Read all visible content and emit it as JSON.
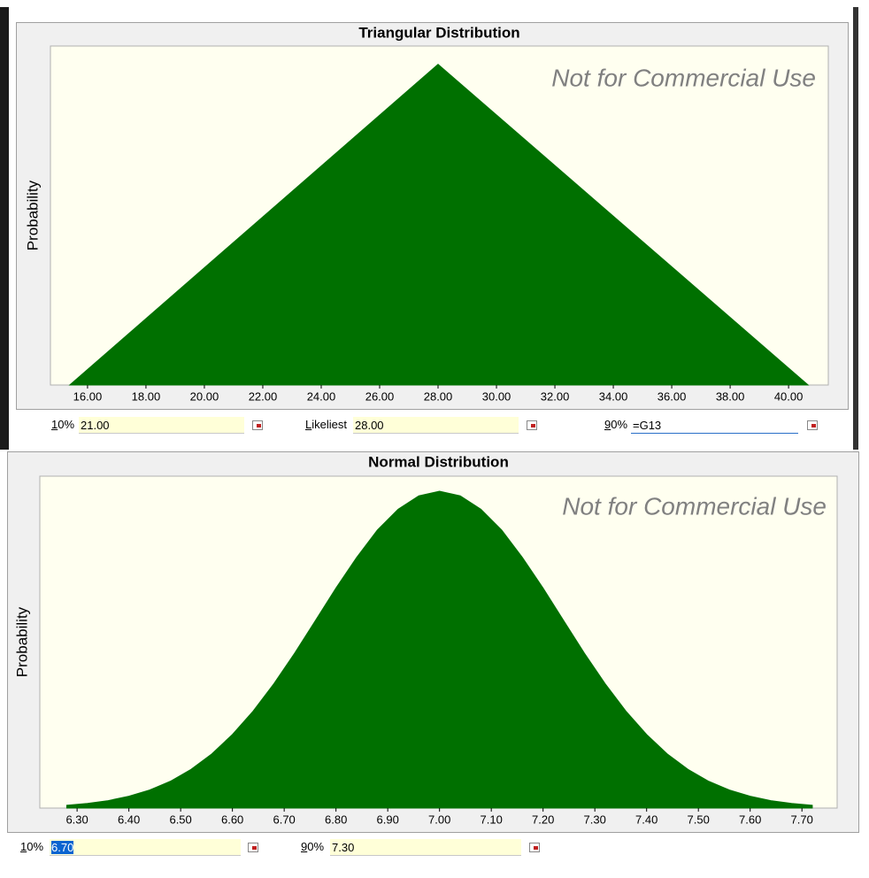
{
  "chart_data": [
    {
      "type": "area",
      "title": "Triangular Distribution",
      "y_label": "Probability",
      "watermark": "Not for Commercial Use",
      "color": "#007000",
      "background": "#fffff0",
      "x": [
        15.39,
        28,
        40.67
      ],
      "values": [
        0,
        0.079,
        0
      ],
      "xlim": [
        14.73,
        41.36
      ],
      "ylim": [
        0,
        0.0835
      ],
      "xticks": [
        {
          "value": 16,
          "label": "16.00"
        },
        {
          "value": 18,
          "label": "18.00"
        },
        {
          "value": 20,
          "label": "20.00"
        },
        {
          "value": 22,
          "label": "22.00"
        },
        {
          "value": 24,
          "label": "24.00"
        },
        {
          "value": 26,
          "label": "26.00"
        },
        {
          "value": 28,
          "label": "28.00"
        },
        {
          "value": 30,
          "label": "30.00"
        },
        {
          "value": 32,
          "label": "32.00"
        },
        {
          "value": 34,
          "label": "34.00"
        },
        {
          "value": 36,
          "label": "36.00"
        },
        {
          "value": 38,
          "label": "38.00"
        },
        {
          "value": 40,
          "label": "40.00"
        }
      ]
    },
    {
      "type": "area",
      "title": "Normal Distribution",
      "y_label": "Probability",
      "watermark": "Not for Commercial Use",
      "color": "#007000",
      "background": "#fffff0",
      "x": [
        6.28,
        6.32,
        6.36,
        6.4,
        6.44,
        6.48,
        6.52,
        6.56,
        6.6,
        6.64,
        6.68,
        6.72,
        6.76,
        6.8,
        6.84,
        6.88,
        6.92,
        6.96,
        7.0,
        7.04,
        7.08,
        7.12,
        7.16,
        7.2,
        7.24,
        7.28,
        7.32,
        7.36,
        7.4,
        7.44,
        7.48,
        7.52,
        7.56,
        7.6,
        7.64,
        7.68,
        7.72
      ],
      "values": [
        0.015,
        0.025,
        0.04,
        0.064,
        0.097,
        0.144,
        0.208,
        0.291,
        0.396,
        0.522,
        0.669,
        0.833,
        1.008,
        1.184,
        1.349,
        1.496,
        1.608,
        1.68,
        1.705,
        1.68,
        1.608,
        1.496,
        1.349,
        1.184,
        1.008,
        0.833,
        0.669,
        0.522,
        0.396,
        0.291,
        0.208,
        0.144,
        0.097,
        0.064,
        0.04,
        0.025,
        0.015
      ],
      "xlim": [
        6.228,
        7.768
      ],
      "ylim": [
        0,
        1.786
      ],
      "xticks": [
        {
          "value": 6.3,
          "label": "6.30"
        },
        {
          "value": 6.4,
          "label": "6.40"
        },
        {
          "value": 6.5,
          "label": "6.50"
        },
        {
          "value": 6.6,
          "label": "6.60"
        },
        {
          "value": 6.7,
          "label": "6.70"
        },
        {
          "value": 6.8,
          "label": "6.80"
        },
        {
          "value": 6.9,
          "label": "6.90"
        },
        {
          "value": 7.0,
          "label": "7.00"
        },
        {
          "value": 7.1,
          "label": "7.10"
        },
        {
          "value": 7.2,
          "label": "7.20"
        },
        {
          "value": 7.3,
          "label": "7.30"
        },
        {
          "value": 7.4,
          "label": "7.40"
        },
        {
          "value": 7.5,
          "label": "7.50"
        },
        {
          "value": 7.6,
          "label": "7.60"
        },
        {
          "value": 7.7,
          "label": "7.70"
        }
      ]
    }
  ],
  "inputs": [
    [
      {
        "label": "10%",
        "value": "21.00"
      },
      {
        "label": "Likeliest",
        "value": "28.00"
      },
      {
        "label": "90%",
        "value": "=G13"
      }
    ],
    [
      {
        "label": "10%",
        "value": "6.70"
      },
      {
        "label": "90%",
        "value": "7.30"
      }
    ]
  ]
}
